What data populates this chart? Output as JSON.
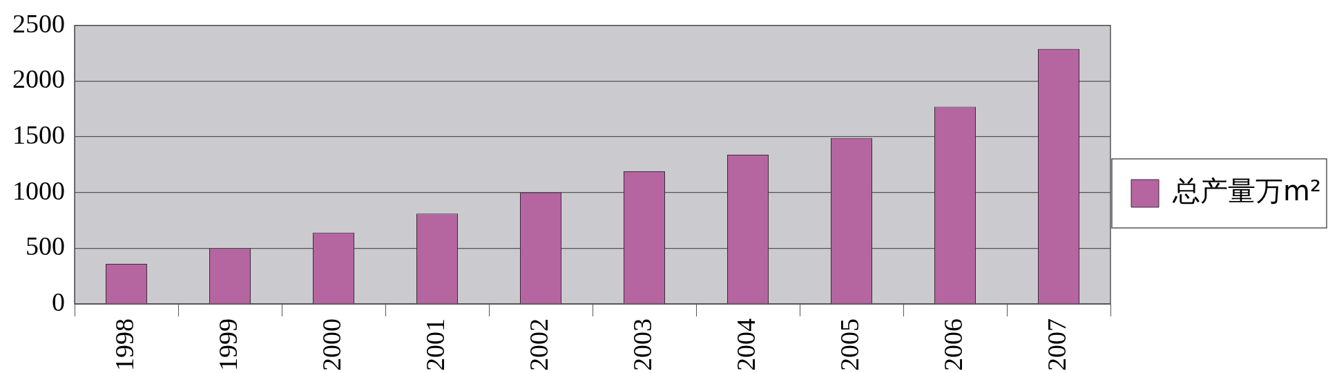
{
  "chart_data": {
    "type": "bar",
    "categories": [
      "1998",
      "1999",
      "2000",
      "2001",
      "2002",
      "2003",
      "2004",
      "2005",
      "2006",
      "2007"
    ],
    "series": [
      {
        "name": "总产量万m²",
        "color": "#b565a0",
        "values": [
          360,
          500,
          640,
          810,
          1000,
          1190,
          1340,
          1490,
          1770,
          2290
        ]
      }
    ],
    "ylim": [
      0,
      2500
    ],
    "yticks": [
      0,
      500,
      1000,
      1500,
      2000,
      2500
    ],
    "grid": "y",
    "legend": "right"
  }
}
